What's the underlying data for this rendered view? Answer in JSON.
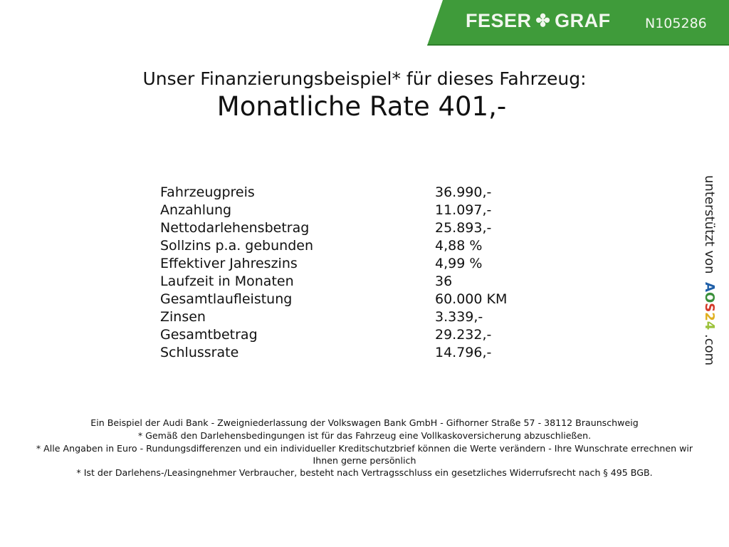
{
  "header": {
    "brand": "FESER",
    "brand2": "GRAF",
    "logo_icon": "clover-icon",
    "vehicle_code": "N105286",
    "brand_color": "#3f9b3a"
  },
  "title": "Unser Finanzierungsbeispiel* für dieses Fahrzeug:",
  "rate": "Monatliche Rate 401,-",
  "rows": [
    {
      "label": "Fahrzeugpreis",
      "value": "36.990,-"
    },
    {
      "label": "Anzahlung",
      "value": "11.097,-"
    },
    {
      "label": "Nettodarlehensbetrag",
      "value": "25.893,-"
    },
    {
      "label": "Sollzins p.a. gebunden",
      "value": "4,88 %"
    },
    {
      "label": "Effektiver Jahreszins",
      "value": "4,99 %"
    },
    {
      "label": "Laufzeit in Monaten",
      "value": "36"
    },
    {
      "label": "Gesamtlaufleistung",
      "value": "60.000 KM"
    },
    {
      "label": "Zinsen",
      "value": "3.339,-"
    },
    {
      "label": "Gesamtbetrag",
      "value": "29.232,-"
    },
    {
      "label": "Schlussrate",
      "value": "14.796,-"
    }
  ],
  "side": {
    "prefix": "unterstützt von",
    "a": "A",
    "o": "O",
    "s": "S",
    "n2": "2",
    "n4": "4",
    "suffix": ".com"
  },
  "footer": [
    "Ein Beispiel der Audi Bank - Zweigniederlassung der Volkswagen Bank GmbH - Gifhorner Straße 57 - 38112 Braunschweig",
    "* Gemäß den Darlehensbedingungen ist für das Fahrzeug eine Vollkaskoversicherung abzuschließen.",
    "* Alle Angaben in Euro - Rundungsdifferenzen und ein individueller Kreditschutzbrief können die Werte verändern - Ihre Wunschrate errechnen wir Ihnen gerne persönlich",
    "* Ist der Darlehens-/Leasingnehmer Verbraucher, besteht nach Vertragsschluss ein gesetzliches Widerrufsrecht nach § 495 BGB."
  ]
}
